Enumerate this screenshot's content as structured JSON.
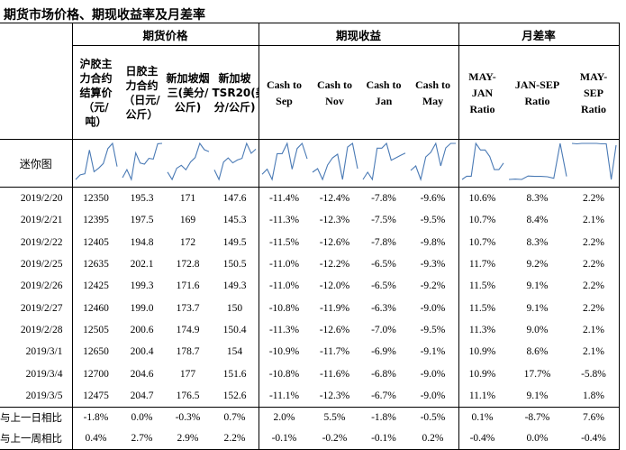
{
  "title": "期货市场价格、期现收益率及月差率",
  "groups": [
    {
      "label": "期货价格"
    },
    {
      "label": "期现收益"
    },
    {
      "label": "月差率"
    }
  ],
  "columns": [
    {
      "label": "沪胶主力合约结算价（元/吨）"
    },
    {
      "label": "日胶主力合约（日元/公斤）"
    },
    {
      "label": "新加坡烟三(美分/公斤)"
    },
    {
      "label": "新加坡TSR20(美分/公斤)"
    },
    {
      "label": "Cash to Sep"
    },
    {
      "label": "Cash to Nov"
    },
    {
      "label": "Cash to Jan"
    },
    {
      "label": "Cash to May"
    },
    {
      "label": "MAY-JAN Ratio"
    },
    {
      "label": "JAN-SEP Ratio"
    },
    {
      "label": "MAY-SEP Ratio"
    }
  ],
  "sparkline_label": "迷你图",
  "rows": [
    {
      "date": "2019/2/20",
      "values": [
        "12350",
        "195.3",
        "171",
        "147.6",
        "-11.4%",
        "-12.4%",
        "-7.8%",
        "-9.6%",
        "10.6%",
        "8.3%",
        "2.2%"
      ]
    },
    {
      "date": "2019/2/21",
      "values": [
        "12395",
        "197.5",
        "169",
        "145.3",
        "-11.3%",
        "-12.3%",
        "-7.5%",
        "-9.5%",
        "10.7%",
        "8.4%",
        "2.1%"
      ]
    },
    {
      "date": "2019/2/22",
      "values": [
        "12405",
        "194.8",
        "172",
        "149.5",
        "-11.5%",
        "-12.6%",
        "-7.8%",
        "-9.8%",
        "10.7%",
        "8.3%",
        "2.2%"
      ]
    },
    {
      "date": "2019/2/25",
      "values": [
        "12635",
        "202.1",
        "172.8",
        "150.5",
        "-11.0%",
        "-12.2%",
        "-6.5%",
        "-9.3%",
        "11.7%",
        "9.2%",
        "2.2%"
      ]
    },
    {
      "date": "2019/2/26",
      "values": [
        "12425",
        "199.3",
        "171.6",
        "149.3",
        "-11.0%",
        "-12.0%",
        "-6.5%",
        "-9.2%",
        "11.5%",
        "9.1%",
        "2.2%"
      ]
    },
    {
      "date": "2019/2/27",
      "values": [
        "12460",
        "199.0",
        "173.7",
        "150",
        "-10.8%",
        "-11.9%",
        "-6.3%",
        "-9.0%",
        "11.5%",
        "9.1%",
        "2.2%"
      ]
    },
    {
      "date": "2019/2/28",
      "values": [
        "12505",
        "200.6",
        "174.9",
        "150.4",
        "-11.3%",
        "-12.6%",
        "-7.0%",
        "-9.5%",
        "11.3%",
        "9.0%",
        "2.1%"
      ]
    },
    {
      "date": "2019/3/1",
      "values": [
        "12650",
        "200.4",
        "178.7",
        "154",
        "-10.9%",
        "-11.7%",
        "-6.9%",
        "-9.1%",
        "10.9%",
        "8.6%",
        "2.1%"
      ]
    },
    {
      "date": "2019/3/4",
      "values": [
        "12700",
        "204.6",
        "177",
        "151.6",
        "-10.8%",
        "-11.6%",
        "-6.8%",
        "-9.0%",
        "10.9%",
        "17.7%",
        "-5.8%"
      ]
    },
    {
      "date": "2019/3/5",
      "values": [
        "12475",
        "204.7",
        "176.5",
        "152.6",
        "-11.1%",
        "-12.3%",
        "-6.7%",
        "-9.0%",
        "11.1%",
        "9.1%",
        "1.8%"
      ]
    }
  ],
  "comparisons": [
    {
      "label": "与上一日相比",
      "values": [
        "-1.8%",
        "0.0%",
        "-0.3%",
        "0.7%",
        "2.0%",
        "5.5%",
        "-1.8%",
        "-0.5%",
        "0.1%",
        "-8.7%",
        "7.6%"
      ]
    },
    {
      "label": "与上一周相比",
      "values": [
        "0.4%",
        "2.7%",
        "2.9%",
        "2.2%",
        "-0.1%",
        "-0.2%",
        "-0.1%",
        "0.2%",
        "-0.4%",
        "0.0%",
        "-0.4%"
      ]
    }
  ],
  "colors": {
    "sparkline": "#4a7ab5",
    "border": "#000000"
  }
}
